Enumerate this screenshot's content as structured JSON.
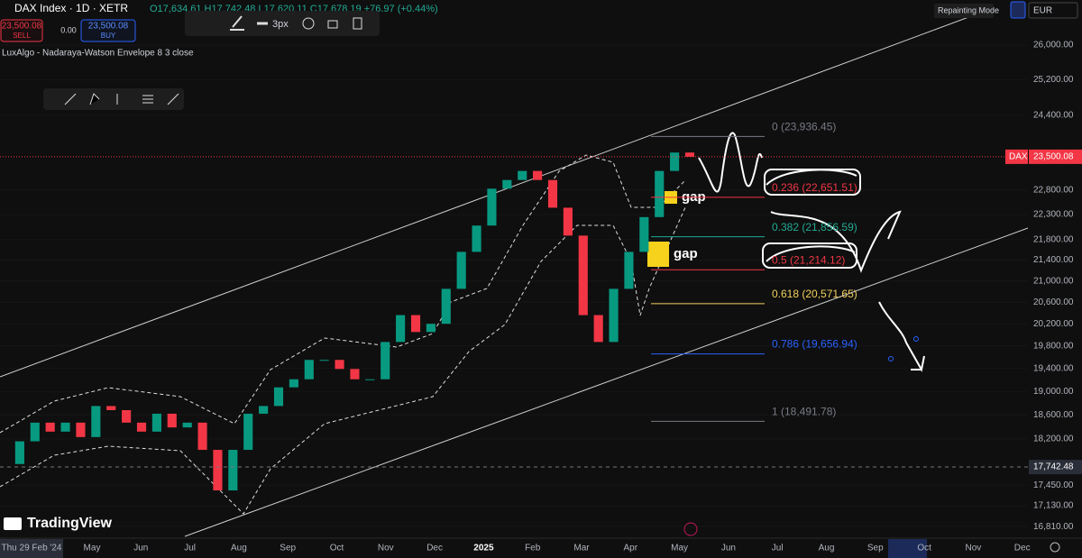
{
  "header": {
    "symbol": "DAX Index · 1D · XETR",
    "ohlc": "O17,634.61 H17,742.48 L17,620.11 C17,678.19 +76.97 (+0.44%)",
    "sell_price": "23,500.08",
    "sell_label": "SELL",
    "spread": "0.00",
    "buy_price": "23,500.08",
    "buy_label": "BUY",
    "indicator": "LuxAlgo - Nadaraya-Watson Envelope 8 3 close",
    "stroke_width": "3px",
    "repainting": "Repainting Mode",
    "currency": "EUR"
  },
  "chart": {
    "scale": "log",
    "ylim": [
      16730,
      26430
    ],
    "yticks": [
      {
        "value": 26000,
        "label": "26,000.00"
      },
      {
        "value": 25200,
        "label": "25,200.00"
      },
      {
        "value": 24400,
        "label": "24,400.00"
      },
      {
        "value": 22800,
        "label": "22,800.00"
      },
      {
        "value": 22300,
        "label": "22,300.00"
      },
      {
        "value": 21800,
        "label": "21,800.00"
      },
      {
        "value": 21400,
        "label": "21,400.00"
      },
      {
        "value": 21000,
        "label": "21,000.00"
      },
      {
        "value": 20600,
        "label": "20,600.00"
      },
      {
        "value": 20200,
        "label": "20,200.00"
      },
      {
        "value": 19800,
        "label": "19,800.00"
      },
      {
        "value": 19400,
        "label": "19,400.00"
      },
      {
        "value": 19000,
        "label": "19,000.00"
      },
      {
        "value": 18600,
        "label": "18,600.00"
      },
      {
        "value": 18200,
        "label": "18,200.00"
      },
      {
        "value": 17450,
        "label": "17,450.00"
      },
      {
        "value": 17130,
        "label": "17,130.00"
      },
      {
        "value": 16810,
        "label": "16,810.00"
      }
    ],
    "closes": [
      17790,
      18160,
      18470,
      18320,
      18470,
      18230,
      18750,
      18680,
      18470,
      18320,
      18620,
      18390,
      18470,
      18020,
      17370,
      18020,
      18620,
      18750,
      19070,
      19210,
      19550,
      19550,
      19390,
      19210,
      19210,
      19870,
      20360,
      20050,
      20200,
      20850,
      21560,
      22080,
      22830,
      23010,
      23200,
      23010,
      22440,
      21880,
      20360,
      19870,
      20850,
      21560,
      22250,
      23200,
      23590,
      23500
    ],
    "up_color": "#089981",
    "down_color": "#f23645",
    "current_price": {
      "value": 23500.08,
      "label": "23,500.08",
      "tag": "DAX"
    },
    "crosshair_price": {
      "value": 17742.48,
      "label": "17,742.48"
    },
    "fib_levels": [
      {
        "value": 23936.45,
        "label": "0 (23,936.45)",
        "color": "#787b86"
      },
      {
        "value": 22651.51,
        "label": "0.236 (22,651.51)",
        "color": "#f23645"
      },
      {
        "value": 21856.59,
        "label": "0.382 (21,856.59)",
        "color": "#22ab94"
      },
      {
        "value": 21214.12,
        "label": "0.5 (21,214.12)",
        "color": "#f23645"
      },
      {
        "value": 20571.65,
        "label": "0.618 (20,571.65)",
        "color": "#f2d15e"
      },
      {
        "value": 19656.94,
        "label": "0.786 (19,656.94)",
        "color": "#2962ff"
      },
      {
        "value": 18491.78,
        "label": "1 (18,491.78)",
        "color": "#787b86"
      }
    ],
    "gap_labels": [
      "gap",
      "gap"
    ],
    "x_labels": [
      "Thu 29 Feb '24",
      "May",
      "Jun",
      "Jul",
      "Aug",
      "Sep",
      "Oct",
      "Nov",
      "Dec",
      "2025",
      "Feb",
      "Mar",
      "Apr",
      "May",
      "Jun",
      "Jul",
      "Aug",
      "Sep",
      "Oct",
      "Nov",
      "Dec"
    ]
  },
  "brand": "TradingView"
}
